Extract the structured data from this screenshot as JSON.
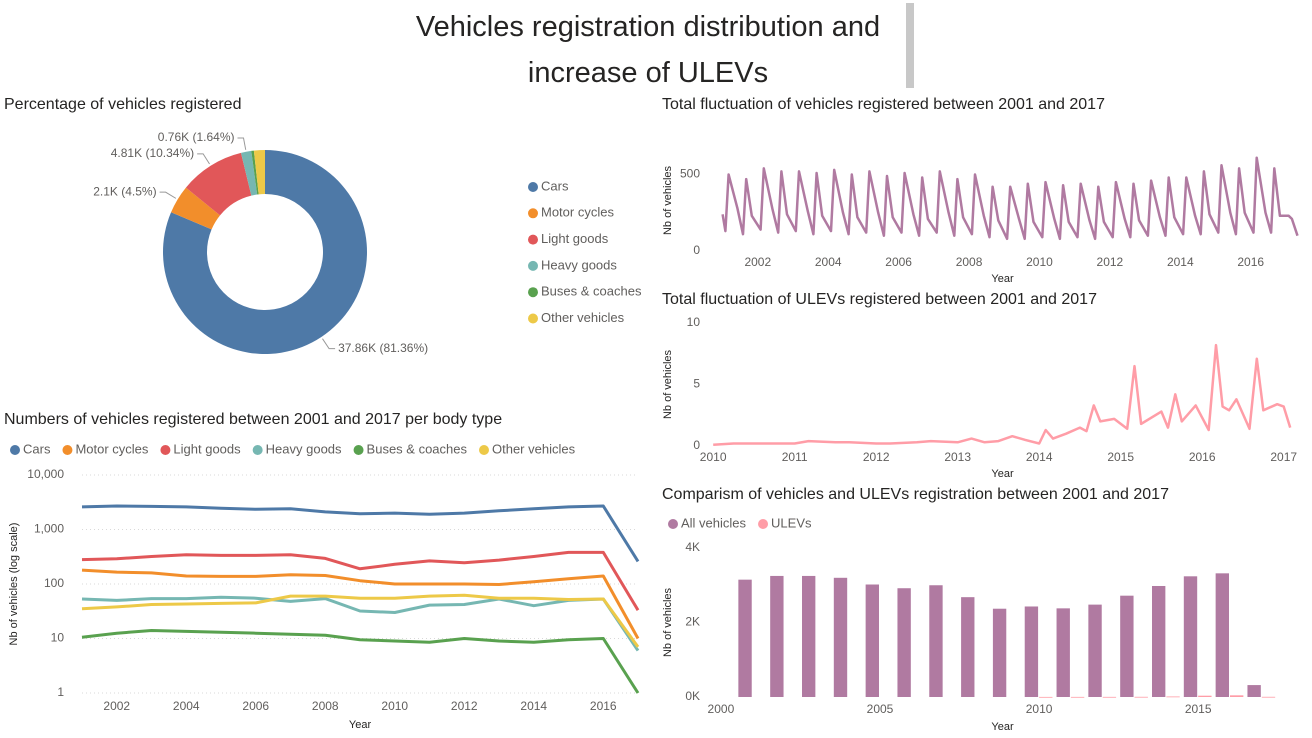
{
  "title": "Vehicles registration distribution and increase of ULEVs",
  "chart_data": [
    {
      "type": "donut",
      "title": "Percentage of vehicles registered",
      "categories": [
        "Cars",
        "Motor cycles",
        "Light goods",
        "Heavy goods",
        "Buses & coaches",
        "Other vehicles"
      ],
      "values": [
        37.86,
        2.1,
        4.81,
        0.76,
        0.19,
        0.81
      ],
      "value_labels": [
        "37.86K (81.36%)",
        "2.1K (4.5%)",
        "4.81K (10.34%)",
        "0.76K (1.64%)",
        null,
        null
      ],
      "colors": [
        "#4e79a7",
        "#f28e2b",
        "#e15759",
        "#76b7b2",
        "#59a14f",
        "#edc948"
      ],
      "legend": "right"
    },
    {
      "type": "line",
      "title": "Numbers of vehicles registered between 2001 and 2017 per body type",
      "x": [
        2001,
        2002,
        2003,
        2004,
        2005,
        2006,
        2007,
        2008,
        2009,
        2010,
        2011,
        2012,
        2013,
        2014,
        2015,
        2016,
        2017
      ],
      "series": [
        {
          "name": "Cars",
          "color": "#4e79a7",
          "values": [
            2600,
            2700,
            2650,
            2600,
            2450,
            2350,
            2400,
            2100,
            1950,
            2000,
            1900,
            2000,
            2200,
            2400,
            2600,
            2700,
            260
          ]
        },
        {
          "name": "Motor cycles",
          "color": "#f28e2b",
          "values": [
            180,
            165,
            160,
            140,
            138,
            138,
            148,
            143,
            115,
            100,
            100,
            100,
            98,
            110,
            125,
            140,
            10
          ]
        },
        {
          "name": "Light goods",
          "color": "#e15759",
          "values": [
            280,
            290,
            320,
            345,
            335,
            335,
            345,
            295,
            190,
            230,
            265,
            245,
            275,
            320,
            380,
            380,
            33
          ]
        },
        {
          "name": "Heavy goods",
          "color": "#76b7b2",
          "values": [
            53,
            50,
            54,
            54,
            57,
            55,
            48,
            54,
            32,
            30,
            41,
            42,
            53,
            40,
            50,
            53,
            6
          ]
        },
        {
          "name": "Buses & coaches",
          "color": "#59a14f",
          "values": [
            10.5,
            12.5,
            14,
            13.5,
            13,
            12.5,
            12,
            11.5,
            9.5,
            9,
            8.5,
            10,
            9,
            8.5,
            9.5,
            10,
            1
          ]
        },
        {
          "name": "Other vehicles",
          "color": "#edc948",
          "values": [
            35,
            38,
            42,
            43,
            44,
            45,
            60,
            60,
            55,
            55,
            60,
            62,
            55,
            55,
            52,
            53,
            7
          ]
        }
      ],
      "xlim": [
        2001,
        2017
      ],
      "xticks": [
        2002,
        2004,
        2006,
        2008,
        2010,
        2012,
        2014,
        2016
      ],
      "ylim": [
        1,
        10000
      ],
      "log_scale": true,
      "yticks": [
        {
          "value": 10000,
          "label": "10,000"
        },
        {
          "value": 1000,
          "label": "1,000"
        },
        100,
        10,
        1
      ],
      "xlabel": "Year",
      "ylabel": "Nb of vehicles (log scale)",
      "grid": true,
      "legend": "top"
    },
    {
      "type": "line",
      "title": "Total fluctuation of vehicles registered between 2001 and 2017",
      "color": "#b07aa1",
      "x": [
        2001.0,
        2001.08,
        2001.17,
        2001.42,
        2001.58,
        2001.67,
        2001.83,
        2002.08,
        2002.17,
        2002.42,
        2002.58,
        2002.67,
        2002.83,
        2003.08,
        2003.17,
        2003.42,
        2003.58,
        2003.67,
        2003.83,
        2004.08,
        2004.17,
        2004.42,
        2004.58,
        2004.67,
        2004.83,
        2005.08,
        2005.17,
        2005.42,
        2005.58,
        2005.67,
        2005.83,
        2006.08,
        2006.17,
        2006.42,
        2006.58,
        2006.67,
        2006.83,
        2007.08,
        2007.17,
        2007.42,
        2007.58,
        2007.67,
        2007.83,
        2008.08,
        2008.17,
        2008.42,
        2008.58,
        2008.67,
        2008.83,
        2009.08,
        2009.17,
        2009.42,
        2009.58,
        2009.67,
        2009.83,
        2010.08,
        2010.17,
        2010.42,
        2010.58,
        2010.67,
        2010.83,
        2011.08,
        2011.17,
        2011.42,
        2011.58,
        2011.67,
        2011.83,
        2012.08,
        2012.17,
        2012.42,
        2012.58,
        2012.67,
        2012.83,
        2013.08,
        2013.17,
        2013.42,
        2013.58,
        2013.67,
        2013.83,
        2014.08,
        2014.17,
        2014.42,
        2014.58,
        2014.67,
        2014.83,
        2015.08,
        2015.17,
        2015.42,
        2015.58,
        2015.67,
        2015.83,
        2016.08,
        2016.17,
        2016.42,
        2016.58,
        2016.67,
        2016.83,
        2017.08,
        2017.17,
        2017.33
      ],
      "values": [
        240,
        130,
        500,
        280,
        110,
        470,
        230,
        140,
        540,
        270,
        120,
        520,
        240,
        130,
        520,
        260,
        110,
        510,
        230,
        130,
        530,
        250,
        110,
        500,
        220,
        120,
        520,
        250,
        100,
        490,
        220,
        120,
        510,
        240,
        100,
        480,
        210,
        120,
        520,
        250,
        100,
        470,
        220,
        110,
        500,
        230,
        90,
        420,
        200,
        80,
        420,
        210,
        80,
        440,
        190,
        90,
        450,
        210,
        80,
        430,
        190,
        90,
        440,
        200,
        80,
        420,
        190,
        90,
        450,
        210,
        90,
        440,
        200,
        100,
        460,
        220,
        100,
        480,
        220,
        110,
        480,
        230,
        110,
        520,
        240,
        120,
        560,
        250,
        110,
        540,
        250,
        120,
        610,
        250,
        120,
        540,
        230,
        230,
        210,
        100
      ],
      "xlim": [
        2000.5,
        2017.4
      ],
      "xticks": [
        2002,
        2004,
        2006,
        2008,
        2010,
        2012,
        2014,
        2016
      ],
      "ylim": [
        0,
        660
      ],
      "yticks": [
        0,
        500
      ],
      "xlabel": "Year",
      "ylabel": "Nb of vehicles"
    },
    {
      "type": "line",
      "title": "Total fluctuation of ULEVs registered between 2001 and 2017",
      "color": "#ff9da7",
      "x": [
        2010.0,
        2010.25,
        2010.5,
        2010.75,
        2011.0,
        2011.17,
        2011.5,
        2011.67,
        2012.0,
        2012.17,
        2012.5,
        2012.67,
        2013.0,
        2013.17,
        2013.33,
        2013.5,
        2013.67,
        2013.83,
        2014.0,
        2014.08,
        2014.17,
        2014.33,
        2014.5,
        2014.58,
        2014.67,
        2014.75,
        2014.92,
        2015.08,
        2015.17,
        2015.25,
        2015.5,
        2015.58,
        2015.67,
        2015.75,
        2015.92,
        2016.08,
        2016.17,
        2016.25,
        2016.33,
        2016.42,
        2016.58,
        2016.67,
        2016.75,
        2016.92,
        2017.0,
        2017.08
      ],
      "values": [
        0.1,
        0.2,
        0.2,
        0.2,
        0.2,
        0.4,
        0.3,
        0.3,
        0.2,
        0.2,
        0.3,
        0.4,
        0.3,
        0.6,
        0.3,
        0.4,
        0.8,
        0.5,
        0.2,
        1.3,
        0.6,
        1.0,
        1.5,
        1.2,
        3.3,
        2.0,
        2.2,
        1.4,
        6.5,
        1.8,
        2.8,
        1.5,
        4.2,
        2.0,
        3.3,
        1.3,
        8.2,
        3.2,
        2.9,
        3.8,
        1.4,
        7.1,
        2.9,
        3.4,
        3.2,
        1.5
      ],
      "xlim": [
        2009.9,
        2017.2
      ],
      "xticks": [
        2010,
        2011,
        2012,
        2013,
        2014,
        2015,
        2016,
        2017
      ],
      "ylim": [
        0,
        10
      ],
      "yticks": [
        0,
        5,
        10
      ],
      "xlabel": "Year",
      "ylabel": "Nb of vehicles"
    },
    {
      "type": "bar",
      "title": "Comparism of vehicles and ULEVs registration between 2001 and 2017",
      "x": [
        2001,
        2002,
        2003,
        2004,
        2005,
        2006,
        2007,
        2008,
        2009,
        2010,
        2011,
        2012,
        2013,
        2014,
        2015,
        2016,
        2017
      ],
      "series": [
        {
          "name": "All vehicles",
          "color": "#b07aa1",
          "values": [
            3150,
            3250,
            3250,
            3200,
            3020,
            2920,
            3000,
            2680,
            2370,
            2430,
            2380,
            2480,
            2720,
            2980,
            3240,
            3320,
            320
          ]
        },
        {
          "name": "ULEVs",
          "color": "#ff9da7",
          "values": [
            null,
            null,
            null,
            null,
            null,
            null,
            null,
            null,
            null,
            2.5,
            3,
            3.5,
            5,
            14,
            35,
            45,
            5
          ]
        }
      ],
      "xlim": [
        1999.5,
        2018.2
      ],
      "xticks": [
        2000,
        2005,
        2010,
        2015
      ],
      "ylim": [
        0,
        4000
      ],
      "yticks": [
        {
          "value": 0,
          "label": "0K"
        },
        {
          "value": 2000,
          "label": "2K"
        },
        {
          "value": 4000,
          "label": "4K"
        }
      ],
      "xlabel": "Year",
      "ylabel": "Nb of vehicles",
      "legend": "top"
    }
  ]
}
